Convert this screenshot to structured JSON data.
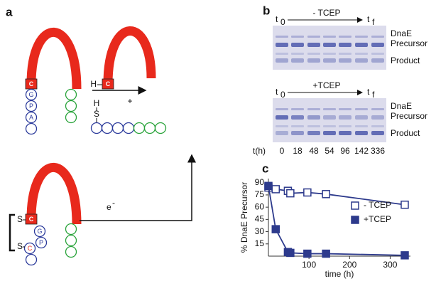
{
  "panel_a": {
    "label": "a",
    "top_box": "C",
    "top_residues": [
      "G",
      "P",
      "A"
    ],
    "product_h": "H",
    "product_box": "C",
    "thiol_h": "H",
    "thiol_s": "S",
    "plus": "+",
    "bottom_box": "C",
    "bottom_residues": [
      "G",
      "P",
      "C"
    ],
    "sulfur_top": "S",
    "sulfur_bottom": "S",
    "electron": "e",
    "electron_charge": "-"
  },
  "panel_b": {
    "label": "b",
    "gels": [
      {
        "condition": "- TCEP",
        "start": "t",
        "start_sub": "0",
        "end": "t",
        "end_sub": "f",
        "band_labels": [
          "DnaE",
          "Precursor",
          "Product"
        ]
      },
      {
        "condition": "+TCEP",
        "start": "t",
        "start_sub": "0",
        "end": "t",
        "end_sub": "f",
        "band_labels": [
          "DnaE",
          "Precursor",
          "Product"
        ]
      }
    ],
    "time_label": "t(h)",
    "times": [
      0,
      18,
      48,
      54,
      96,
      142,
      336
    ]
  },
  "panel_c": {
    "label": "c"
  },
  "chart_data": {
    "type": "line",
    "x_label": "time (h)",
    "y_label": "% DnaE Precursor",
    "x": [
      0,
      18,
      48,
      54,
      96,
      142,
      336
    ],
    "series": [
      {
        "name": "- TCEP",
        "color": "#2d3a8c",
        "marker": "open",
        "values": [
          84,
          82,
          80,
          77,
          78,
          76,
          63
        ]
      },
      {
        "name": "+TCEP",
        "color": "#2d3a8c",
        "marker": "filled",
        "values": [
          86,
          33,
          5,
          4,
          3,
          3,
          1
        ]
      }
    ],
    "xlim": [
      0,
      350
    ],
    "ylim": [
      0,
      95
    ],
    "xticks": [
      100,
      200,
      300
    ],
    "yticks": [
      15,
      30,
      45,
      60,
      75,
      90
    ],
    "grid": false,
    "legend": "right"
  }
}
